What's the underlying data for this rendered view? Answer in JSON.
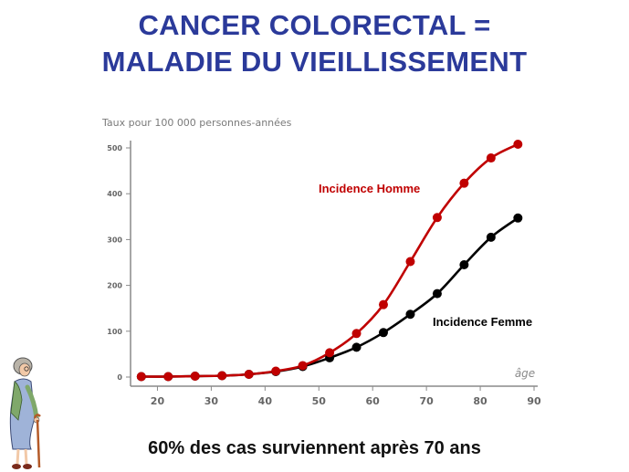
{
  "title": {
    "line1": "CANCER COLORECTAL =",
    "line2": "MALADIE DU VIEILLISSEMENT"
  },
  "caption": "60% des cas surviennent après 70 ans",
  "colors": {
    "title": "#2b3a9a",
    "homme": "#c00000",
    "femme": "#000000",
    "axis": "#8a8a8a"
  },
  "chart_data": {
    "type": "line",
    "ylabel": "Taux pour 100 000 personnes-années",
    "xlabel": "âge",
    "xlim": [
      15,
      90
    ],
    "ylim": [
      0,
      500
    ],
    "x_ticks": [
      20,
      30,
      40,
      50,
      60,
      70,
      80,
      90
    ],
    "y_ticks": [
      0,
      100,
      200,
      300,
      400,
      500
    ],
    "grid": false,
    "series": [
      {
        "name": "Incidence Homme",
        "color": "#c00000",
        "x": [
          17,
          22,
          27,
          32,
          37,
          42,
          47,
          52,
          57,
          62,
          67,
          72,
          77,
          82,
          87
        ],
        "y": [
          1,
          1,
          2,
          3,
          6,
          13,
          25,
          53,
          95,
          158,
          252,
          348,
          423,
          478,
          508
        ]
      },
      {
        "name": "Incidence Femme",
        "color": "#000000",
        "x": [
          17,
          22,
          27,
          32,
          37,
          42,
          47,
          52,
          57,
          62,
          67,
          72,
          77,
          82,
          87
        ],
        "y": [
          1,
          1,
          2,
          3,
          6,
          12,
          23,
          42,
          65,
          97,
          137,
          182,
          245,
          305,
          347
        ]
      }
    ]
  }
}
